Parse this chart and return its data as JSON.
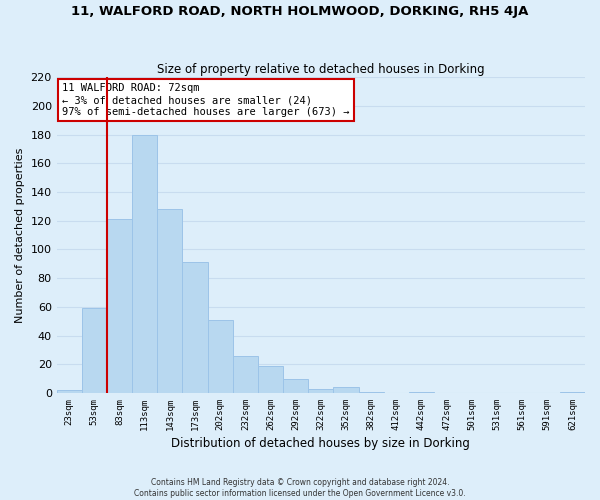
{
  "title": "11, WALFORD ROAD, NORTH HOLMWOOD, DORKING, RH5 4JA",
  "subtitle": "Size of property relative to detached houses in Dorking",
  "xlabel": "Distribution of detached houses by size in Dorking",
  "ylabel": "Number of detached properties",
  "bar_labels": [
    "23sqm",
    "53sqm",
    "83sqm",
    "113sqm",
    "143sqm",
    "173sqm",
    "202sqm",
    "232sqm",
    "262sqm",
    "292sqm",
    "322sqm",
    "352sqm",
    "382sqm",
    "412sqm",
    "442sqm",
    "472sqm",
    "501sqm",
    "531sqm",
    "561sqm",
    "591sqm",
    "621sqm"
  ],
  "bar_values": [
    2,
    59,
    121,
    180,
    128,
    91,
    51,
    26,
    19,
    10,
    3,
    4,
    1,
    0,
    1,
    0,
    0,
    0,
    0,
    0,
    1
  ],
  "bar_color": "#b8d8f0",
  "bar_edge_color": "#9cc4e8",
  "vline_color": "#cc0000",
  "vline_x": 1.5,
  "ylim": [
    0,
    220
  ],
  "yticks": [
    0,
    20,
    40,
    60,
    80,
    100,
    120,
    140,
    160,
    180,
    200,
    220
  ],
  "annotation_title": "11 WALFORD ROAD: 72sqm",
  "annotation_line1": "← 3% of detached houses are smaller (24)",
  "annotation_line2": "97% of semi-detached houses are larger (673) →",
  "annotation_box_color": "#ffffff",
  "annotation_box_edge": "#cc0000",
  "grid_color": "#c8dcef",
  "bg_color": "#ddeefa",
  "footer1": "Contains HM Land Registry data © Crown copyright and database right 2024.",
  "footer2": "Contains public sector information licensed under the Open Government Licence v3.0."
}
